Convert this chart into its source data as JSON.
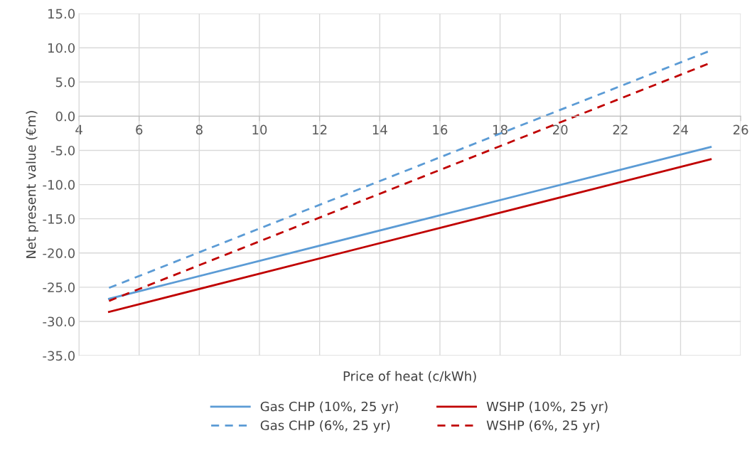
{
  "chart_data": {
    "type": "line",
    "xlabel": "Price of heat (c/kWh)",
    "ylabel": "Net present value (€m)",
    "x": [
      5,
      25
    ],
    "series": [
      {
        "name": "Gas CHP (10%, 25 yr)",
        "color": "#5b9bd5",
        "line_style": "solid",
        "values": [
          -26.7,
          -4.5
        ]
      },
      {
        "name": "Gas CHP (6%, 25 yr)",
        "color": "#5b9bd5",
        "line_style": "dashed",
        "values": [
          -25.1,
          9.6
        ]
      },
      {
        "name": "WSHP (10%, 25 yr)",
        "color": "#c00000",
        "line_style": "solid",
        "values": [
          -28.6,
          -6.3
        ]
      },
      {
        "name": "WSHP (6%, 25 yr)",
        "color": "#c00000",
        "line_style": "dashed",
        "values": [
          -27.0,
          7.8
        ]
      }
    ],
    "xlim": [
      4,
      26
    ],
    "xticks": [
      4,
      6,
      8,
      10,
      12,
      14,
      16,
      18,
      20,
      22,
      24,
      26
    ],
    "ylim": [
      -35,
      15
    ],
    "yticks": [
      {
        "value": -35,
        "label": "-35.0"
      },
      {
        "value": -30,
        "label": "-30.0"
      },
      {
        "value": -25,
        "label": "-25.0"
      },
      {
        "value": -20,
        "label": "-20.0"
      },
      {
        "value": -15,
        "label": "-15.0"
      },
      {
        "value": -10,
        "label": "-10.0"
      },
      {
        "value": -5,
        "label": "-5.0"
      },
      {
        "value": 0,
        "label": "0.0"
      },
      {
        "value": 5,
        "label": "5.0"
      },
      {
        "value": 10,
        "label": "10.0"
      },
      {
        "value": 15,
        "label": "15.0"
      }
    ],
    "grid": true,
    "legend": "bottom",
    "marker": "none"
  }
}
